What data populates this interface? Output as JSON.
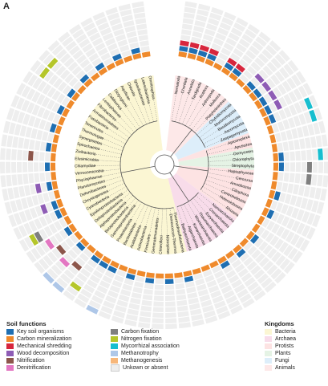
{
  "panel_letter": "A",
  "soil_functions_title": "Soil functions",
  "kingdoms_title": "Kingdoms",
  "soil_functions_col1": [
    {
      "label": "Key soil organisms",
      "color": "#1f6fb2"
    },
    {
      "label": "Carbon mineralization",
      "color": "#ef8a2c"
    },
    {
      "label": "Mechanical shredding",
      "color": "#d7263d"
    },
    {
      "label": "Wood decomposition",
      "color": "#8e5cb5"
    },
    {
      "label": "Nitrification",
      "color": "#8c564b"
    },
    {
      "label": "Denitrification",
      "color": "#e377c2"
    }
  ],
  "soil_functions_col2": [
    {
      "label": "Carbon fixation",
      "color": "#7f7f7f"
    },
    {
      "label": "Nitrogen fixation",
      "color": "#b5c62a"
    },
    {
      "label": "Mycorrhizal association",
      "color": "#17becf"
    },
    {
      "label": "Methanotrophy",
      "color": "#aec7e8"
    },
    {
      "label": "Methanogenesis",
      "color": "#f7b77a"
    },
    {
      "label": "Unkown or absent",
      "color": "#eeeeee"
    }
  ],
  "kingdoms": [
    {
      "label": "Bacteria",
      "color": "#fbf6d3"
    },
    {
      "label": "Archaea",
      "color": "#f8dcea"
    },
    {
      "label": "Protists",
      "color": "#fde3e3"
    },
    {
      "label": "Plants",
      "color": "#e5f3e5"
    },
    {
      "label": "Fungi",
      "color": "#ddeefa"
    },
    {
      "label": "Animals",
      "color": "#fde8e8"
    }
  ],
  "tree_labels": [
    "Nematoda",
    "Chordata",
    "Annelida",
    "Tardigrada",
    "Rotifera",
    "Arthropoda",
    "Mollusca",
    "Platyhelminthes",
    "Chytridiomycota",
    "Mucoromycota",
    "Basidiomycota",
    "Ascomycota",
    "Zoopagomycota",
    "Apicomplexa",
    "Apusozoa",
    "Oomycetes",
    "Chlorophyta",
    "Streptophyta",
    "Haptophyceae",
    "Cercozoa",
    "Amoebozoa",
    "Ciliophora",
    "Centroheliozoa",
    "Heterolobosea",
    "Rhizaria",
    "Nanoarchaeota",
    "Crenarchaeota",
    "Euryarchaeota",
    "Thaumarchaeota",
    "Woesearchaeota",
    "Korarchaeota",
    "Aigarchaeota",
    "Bathyarchaeota",
    "Thermodesulfobacteria",
    "Deinococcus-Thermus",
    "Nitrospirae",
    "Chloroflexi",
    "Gemmatimonadetes",
    "Firmicutes",
    "Actinobacteria",
    "Acidobacteria",
    "Bacteroidetes",
    "Proteobacteria",
    "Gammaproteobacteria",
    "Betaproteobacteria",
    "Alphaproteobacteria",
    "Deltaproteobacteria",
    "Epsilonproteobacteria",
    "Cyanobacteria",
    "Chrysiogenetes",
    "Deferribacteres",
    "Planctomycetes",
    "Phycisphaerae",
    "Verrucomicrobia",
    "Chlamydiae",
    "Elusimicrobia",
    "Zixibacteria",
    "Spirochaetes",
    "Synergistetes",
    "Thermotogae",
    "Tenericutes",
    "Fusobacteria",
    "Armatimonadetes",
    "Fibrobacteres",
    "Lentisphaerae",
    "Caldiserica",
    "Dictyoglomi",
    "Aquificae",
    "Chlorobi",
    "Ignavibacteriae",
    "Latescibacteria",
    "Omnitrophica"
  ]
}
